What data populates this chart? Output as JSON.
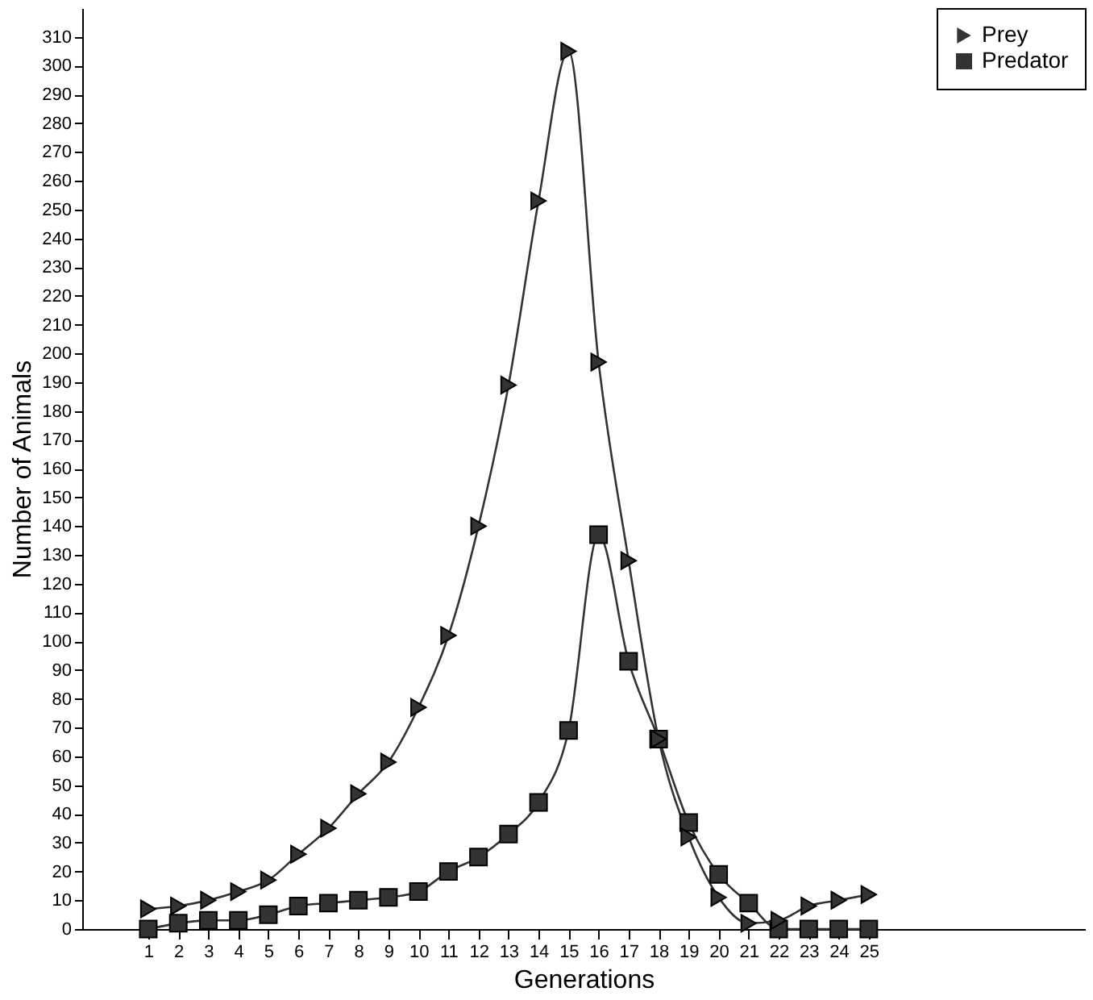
{
  "chart_data": {
    "type": "line",
    "xlabel": "Generations",
    "ylabel": "Number of Animals",
    "x": [
      1,
      2,
      3,
      4,
      5,
      6,
      7,
      8,
      9,
      10,
      11,
      12,
      13,
      14,
      15,
      16,
      17,
      18,
      19,
      20,
      21,
      22,
      23,
      24,
      25
    ],
    "series": [
      {
        "name": "Prey",
        "color": "#333333",
        "marker": "triangle",
        "values": [
          7,
          8,
          10,
          13,
          17,
          26,
          35,
          47,
          58,
          77,
          102,
          140,
          189,
          253,
          305,
          197,
          128,
          66,
          32,
          11,
          2,
          3,
          8,
          10,
          12
        ]
      },
      {
        "name": "Predator",
        "color": "#333333",
        "marker": "square",
        "values": [
          0,
          2,
          3,
          3,
          5,
          8,
          9,
          10,
          11,
          13,
          20,
          25,
          33,
          44,
          69,
          137,
          93,
          66,
          37,
          19,
          9,
          0,
          0,
          0,
          0
        ]
      }
    ],
    "xlim": [
      -1.2,
      32.2
    ],
    "xticks": [
      1,
      2,
      3,
      4,
      5,
      6,
      7,
      8,
      9,
      10,
      11,
      12,
      13,
      14,
      15,
      16,
      17,
      18,
      19,
      20,
      21,
      22,
      23,
      24,
      25
    ],
    "ylim": [
      0,
      320
    ],
    "yticks": [
      0,
      10,
      20,
      30,
      40,
      50,
      60,
      70,
      80,
      90,
      100,
      110,
      120,
      130,
      140,
      150,
      160,
      170,
      180,
      190,
      200,
      210,
      220,
      230,
      240,
      250,
      260,
      270,
      280,
      290,
      300,
      310
    ],
    "grid": false,
    "legend": "top right"
  }
}
